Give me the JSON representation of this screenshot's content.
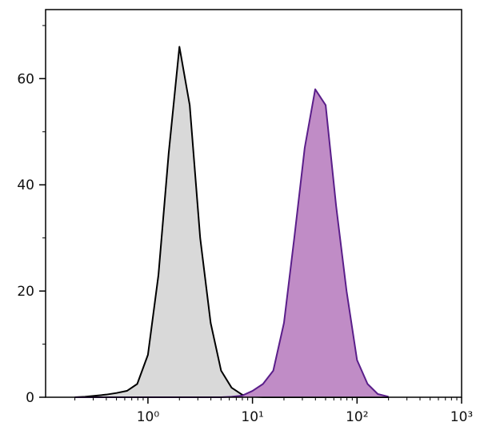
{
  "chart_data": {
    "type": "area",
    "log_x": true,
    "x": [
      0.2,
      0.25,
      0.32,
      0.4,
      0.5,
      0.63,
      0.79,
      1,
      1.26,
      1.58,
      2,
      2.51,
      3.16,
      3.98,
      5.01,
      6.31,
      7.94,
      10,
      12.6,
      15.8,
      20,
      25.1,
      31.6,
      39.8,
      50.1,
      63.1,
      79.4,
      100,
      126,
      158,
      200
    ],
    "series": [
      {
        "color": "#000000",
        "fill": "#d9d9d9",
        "values": [
          0,
          0.1,
          0.3,
          0.5,
          0.8,
          1.2,
          2.5,
          8,
          23,
          46,
          66,
          55,
          30,
          14,
          5,
          1.8,
          0.5,
          0.1,
          0,
          0,
          0,
          0,
          0,
          0,
          0,
          0,
          0,
          0,
          0,
          0,
          0
        ]
      },
      {
        "color": "#5a1e8a",
        "fill": "#c08cc6",
        "values": [
          0,
          0,
          0,
          0,
          0,
          0,
          0,
          0,
          0,
          0,
          0,
          0,
          0,
          0,
          0,
          0.1,
          0.3,
          1.2,
          2.5,
          5,
          14,
          30,
          47,
          58,
          55,
          36,
          20,
          7,
          2.5,
          0.6,
          0.1
        ]
      }
    ],
    "xlim": [
      0.105,
      1000
    ],
    "ylim": [
      0,
      73
    ],
    "xticks": [
      {
        "value": 1,
        "label": "10⁰"
      },
      {
        "value": 10,
        "label": "10¹"
      },
      {
        "value": 100,
        "label": "10²"
      },
      {
        "value": 1000,
        "label": "10³"
      }
    ],
    "xminorticks": [
      0.2,
      0.3,
      0.4,
      0.5,
      0.6,
      0.7,
      0.8,
      0.9,
      2,
      3,
      4,
      5,
      6,
      7,
      8,
      9,
      20,
      30,
      40,
      50,
      60,
      70,
      80,
      90,
      200,
      300,
      400,
      500,
      600,
      700,
      800,
      900
    ],
    "yticks": [
      0,
      20,
      40,
      60
    ],
    "yminorticks": [
      10,
      30,
      50,
      70
    ]
  }
}
